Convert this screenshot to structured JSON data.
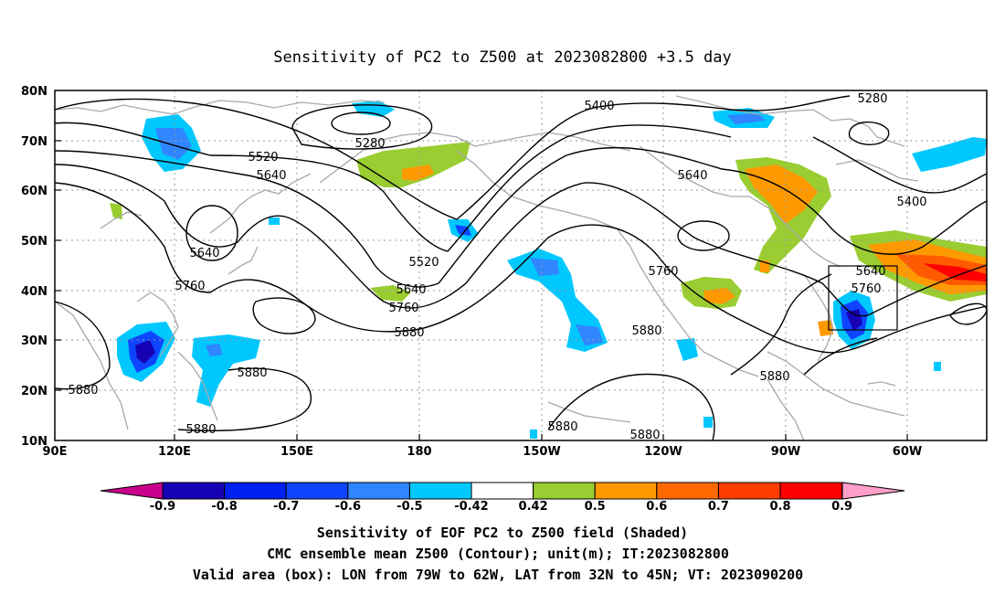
{
  "title": "Sensitivity of PC2 to Z500 at 2023082800 +3.5 day",
  "lat_labels": [
    "80N",
    "70N",
    "60N",
    "50N",
    "40N",
    "30N",
    "20N",
    "10N"
  ],
  "lon_labels": [
    "90E",
    "120E",
    "150E",
    "180",
    "150W",
    "120W",
    "90W",
    "60W"
  ],
  "contour_labels": [
    "5280",
    "5280",
    "5400",
    "5400",
    "5520",
    "5520",
    "5640",
    "5640",
    "5640",
    "5640",
    "5640",
    "5760",
    "5760",
    "5760",
    "5760",
    "5880",
    "5880",
    "5880",
    "5880",
    "5880",
    "5880",
    "5880",
    "5880"
  ],
  "colorbar": {
    "labels": [
      "-0.9",
      "-0.8",
      "-0.7",
      "-0.6",
      "-0.5",
      "-0.42",
      "0.42",
      "0.5",
      "0.6",
      "0.7",
      "0.8",
      "0.9"
    ],
    "colors": [
      "#1600b4",
      "#0020f0",
      "#1045ff",
      "#2f86ff",
      "#00c8ff",
      "#ffffff",
      "#9acd32",
      "#ff9900",
      "#ff6a00",
      "#ff3c00",
      "#ff0000"
    ],
    "end_low_color": "#c8008c",
    "end_high_color": "#ff9ec8"
  },
  "valid_box": {
    "lon_w": "79W",
    "lon_e": "62W",
    "lat_s": "32N",
    "lat_n": "45N"
  },
  "captions": [
    "Sensitivity of EOF PC2 to Z500 field (Shaded)",
    "CMC ensemble mean Z500 (Contour); unit(m); IT:2023082800",
    "Valid area (box): LON from 79W to 62W, LAT from 32N to 45N; VT: 2023090200"
  ]
}
